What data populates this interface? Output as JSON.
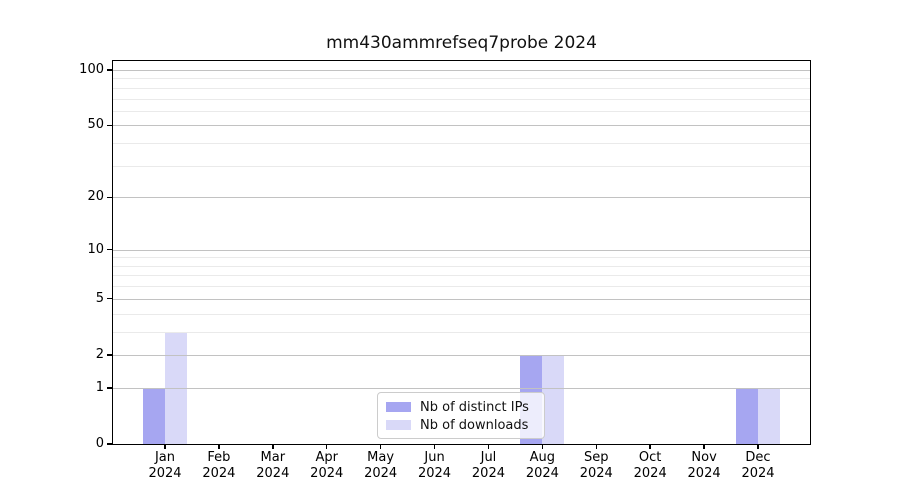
{
  "figure": {
    "title": "mm430ammrefseq7probe 2024"
  },
  "legend": {
    "items": [
      {
        "label": "Nb of distinct IPs",
        "color": "#a6a6f1"
      },
      {
        "label": "Nb of downloads",
        "color": "#d9d9f8"
      }
    ]
  },
  "colors": {
    "background": "#ffffff",
    "spine": "#000000",
    "major_grid": "#c2c2c2",
    "minor_grid": "#eaeaea",
    "legend_border": "#cccccc",
    "bar_distinct_ips": "#a6a6f1",
    "bar_downloads": "#d9d9f8"
  },
  "chart_data": {
    "type": "bar",
    "title": "mm430ammrefseq7probe 2024",
    "categories": [
      "Jan 2024",
      "Feb 2024",
      "Mar 2024",
      "Apr 2024",
      "May 2024",
      "Jun 2024",
      "Jul 2024",
      "Aug 2024",
      "Sep 2024",
      "Oct 2024",
      "Nov 2024",
      "Dec 2024"
    ],
    "series": [
      {
        "name": "Nb of distinct IPs",
        "color": "#a6a6f1",
        "values": [
          1,
          0,
          0,
          0,
          0,
          0,
          0,
          2,
          0,
          0,
          0,
          1
        ]
      },
      {
        "name": "Nb of downloads",
        "color": "#d9d9f8",
        "values": [
          3,
          0,
          0,
          0,
          0,
          0,
          0,
          2,
          0,
          0,
          0,
          1
        ]
      }
    ],
    "y_scale": "log10(1+value)",
    "y_major_ticks": [
      0,
      1,
      2,
      5,
      10,
      20,
      50,
      100
    ],
    "y_minor_gridlines": [
      3,
      4,
      6,
      7,
      8,
      9,
      30,
      40,
      60,
      70,
      80,
      90
    ],
    "ylim": [
      0,
      112
    ],
    "xlabel": "",
    "ylabel": "",
    "grid": true,
    "legend_position": "lower center"
  }
}
